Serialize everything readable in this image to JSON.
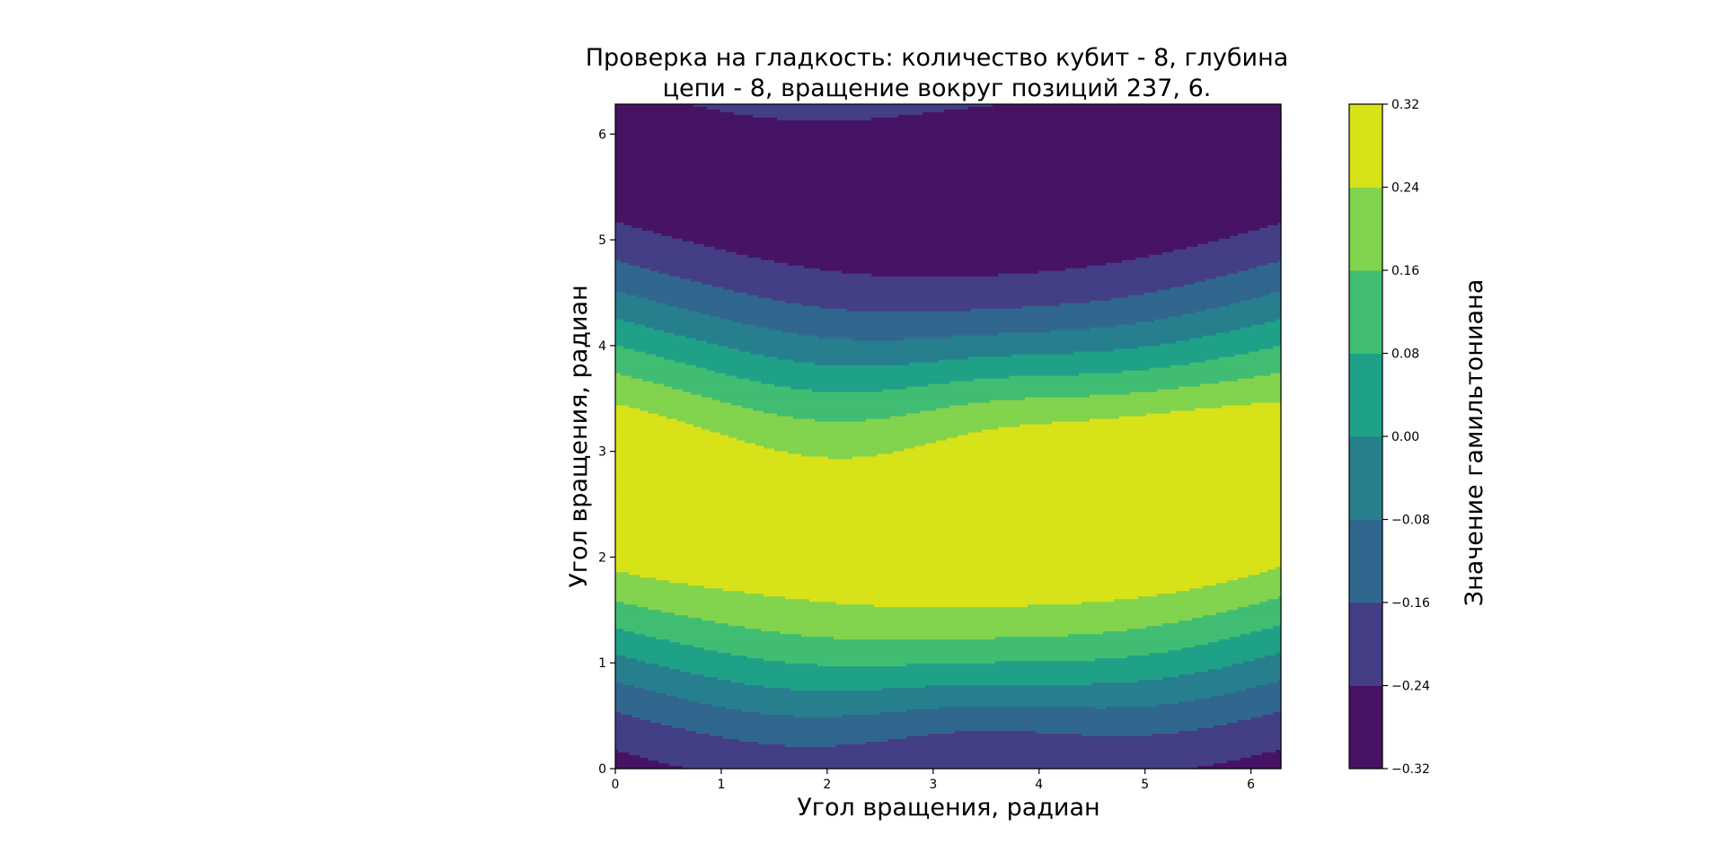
{
  "chart_data": {
    "type": "contourf",
    "title_lines": [
      "Проверка на гладкость: количество кубит - 8, глубина",
      "цепи - 8, вращение вокруг позиций 237, 6."
    ],
    "xlabel": "Угол вращения, радиан",
    "ylabel": "Угол вращения, радиан",
    "colorbar_label": "Значение гамильтониана",
    "xlim": [
      0,
      6.283
    ],
    "ylim": [
      0,
      6.283
    ],
    "xticks": [
      0,
      1,
      2,
      3,
      4,
      5,
      6
    ],
    "yticks": [
      0,
      1,
      2,
      3,
      4,
      5,
      6
    ],
    "xtick_labels": [
      "0",
      "1",
      "2",
      "3",
      "4",
      "5",
      "6"
    ],
    "ytick_labels": [
      "0",
      "1",
      "2",
      "3",
      "4",
      "5",
      "6"
    ],
    "levels": [
      -0.32,
      -0.24,
      -0.16,
      -0.08,
      0.0,
      0.08,
      0.16,
      0.24,
      0.32
    ],
    "colorbar_tick_labels": [
      "0.32",
      "0.24",
      "0.16",
      "0.08",
      "0.00",
      "−0.08",
      "−0.16",
      "−0.24",
      "−0.32"
    ],
    "colormap": "viridis",
    "level_colors": [
      "#471365",
      "#433e85",
      "#31668e",
      "#277f8e",
      "#1fa187",
      "#40bd72",
      "#82d34d",
      "#d8e219"
    ],
    "extrema": {
      "max_value_approx": 0.31,
      "max_location": [
        5.3,
        2.7
      ],
      "min_value_approx": -0.31,
      "min_locations": [
        [
          3.6,
          0.4
        ],
        [
          4.0,
          6.1
        ]
      ]
    }
  }
}
